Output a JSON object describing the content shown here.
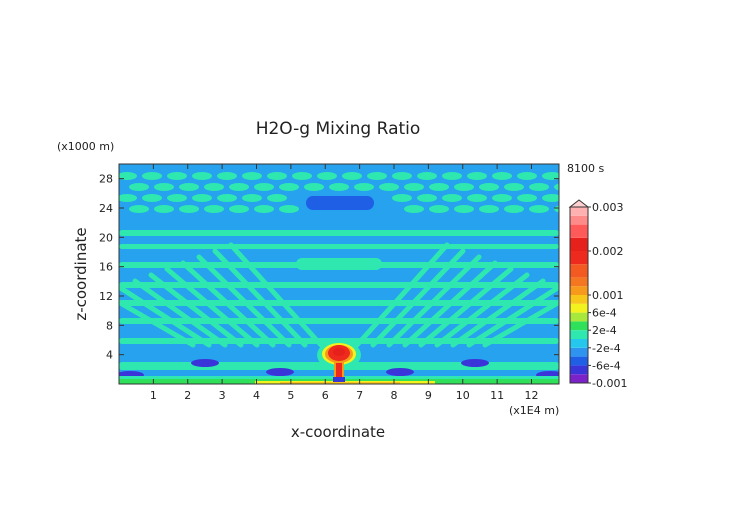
{
  "chart_data": {
    "type": "heatmap",
    "title": "H2O-g Mixing Ratio",
    "xlabel": "x-coordinate",
    "ylabel": "z-coordinate",
    "x_unit": "(x1E4 m)",
    "y_unit": "(x1000 m)",
    "time_label": "8100 s",
    "xlim": [
      0,
      12.8
    ],
    "ylim": [
      0,
      30
    ],
    "x_ticks": [
      "1",
      "2",
      "3",
      "4",
      "5",
      "6",
      "7",
      "8",
      "9",
      "10",
      "11",
      "12"
    ],
    "y_ticks": [
      "4",
      "8",
      "12",
      "16",
      "20",
      "24",
      "28"
    ],
    "background_field_level": "-2e-4 to 0",
    "colorbar": {
      "labels": [
        "0.003",
        "0.002",
        "0.001",
        "6e-4",
        "2e-4",
        "-2e-4",
        "-6e-4",
        "-0.001"
      ],
      "levels": [
        {
          "lo": -0.001,
          "hi": -0.0008,
          "color": "#7b22c8"
        },
        {
          "lo": -0.0008,
          "hi": -0.0006,
          "color": "#3a35d8"
        },
        {
          "lo": -0.0006,
          "hi": -0.0004,
          "color": "#1f5fe6"
        },
        {
          "lo": -0.0004,
          "hi": -0.0002,
          "color": "#2f94ef"
        },
        {
          "lo": -0.0002,
          "hi": 0.0,
          "color": "#25c8ec"
        },
        {
          "lo": 0.0,
          "hi": 0.0002,
          "color": "#2ee8b0"
        },
        {
          "lo": 0.0002,
          "hi": 0.0004,
          "color": "#2fe05a"
        },
        {
          "lo": 0.0004,
          "hi": 0.0006,
          "color": "#a8e83c"
        },
        {
          "lo": 0.0006,
          "hi": 0.0008,
          "color": "#f2f21e"
        },
        {
          "lo": 0.0008,
          "hi": 0.001,
          "color": "#f7c81a"
        },
        {
          "lo": 0.001,
          "hi": 0.0012,
          "color": "#f79a1c"
        },
        {
          "lo": 0.0012,
          "hi": 0.0014,
          "color": "#f57620"
        },
        {
          "lo": 0.0014,
          "hi": 0.0017,
          "color": "#f25a22"
        },
        {
          "lo": 0.0017,
          "hi": 0.002,
          "color": "#ee2a1e"
        },
        {
          "lo": 0.002,
          "hi": 0.0023,
          "color": "#e6201a"
        },
        {
          "lo": 0.0023,
          "hi": 0.0026,
          "color": "#ff5a5a"
        },
        {
          "lo": 0.0026,
          "hi": 0.0028,
          "color": "#ff8a8a"
        },
        {
          "lo": 0.0028,
          "hi": 0.003,
          "color": "#ffb0b0"
        }
      ]
    },
    "features": [
      {
        "name": "central maximum",
        "x": 6.4,
        "z": 4.2,
        "level": "> 0.002"
      },
      {
        "name": "surface layer",
        "x_range": [
          0,
          12.8
        ],
        "z": 0.3,
        "level": "2e-4 to 6e-4"
      },
      {
        "name": "negative anomalies",
        "z": 1.5,
        "level": "-6e-4 to -2e-4"
      }
    ]
  }
}
